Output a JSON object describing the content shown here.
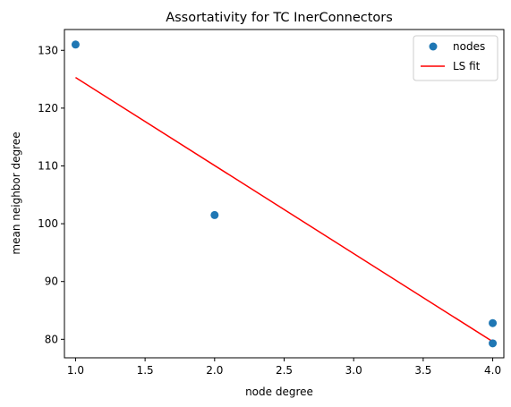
{
  "chart_data": {
    "type": "scatter",
    "title": "Assortativity for TC InerConnectors",
    "xlabel": "node degree",
    "ylabel": "mean neighbor degree",
    "xlim": [
      0.92,
      4.08
    ],
    "ylim": [
      76.8,
      133.6
    ],
    "xticks": [
      "1.0",
      "1.5",
      "2.0",
      "2.5",
      "3.0",
      "3.5",
      "4.0"
    ],
    "xtick_values": [
      1.0,
      1.5,
      2.0,
      2.5,
      3.0,
      3.5,
      4.0
    ],
    "yticks": [
      "80",
      "90",
      "100",
      "110",
      "120",
      "130"
    ],
    "ytick_values": [
      80,
      90,
      100,
      110,
      120,
      130
    ],
    "grid": false,
    "legend_position": "top-right",
    "series": [
      {
        "name": "nodes",
        "kind": "scatter",
        "color": "#1f77b4",
        "x": [
          1.0,
          2.0,
          4.0,
          4.0
        ],
        "y": [
          131.0,
          101.5,
          82.8,
          79.3
        ]
      },
      {
        "name": "LS fit",
        "kind": "line",
        "color": "#ff0000",
        "x": [
          1.0,
          4.0
        ],
        "y": [
          125.3,
          79.6
        ]
      }
    ]
  }
}
